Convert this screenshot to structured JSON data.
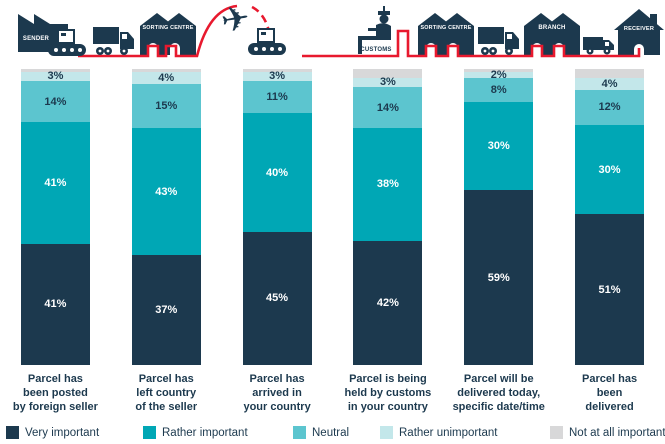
{
  "journey": {
    "stations": [
      {
        "label": "SENDER",
        "icon": "factory-icon"
      },
      {
        "label": "SORTING CENTRE",
        "icon": "warehouse-icon"
      },
      {
        "label": "CUSTOMS",
        "icon": "customs-officer-icon"
      },
      {
        "label": "SORTING CENTRE",
        "icon": "warehouse-icon"
      },
      {
        "label": "BRANCH",
        "icon": "warehouse-icon"
      },
      {
        "label": "RECEIVER",
        "icon": "house-icon"
      }
    ],
    "connectors": [
      "truck-icon",
      "airplane-icon",
      "conveyor-icon",
      "truck-icon",
      "van-icon"
    ],
    "path_color": "#e8192e",
    "icon_color": "#1c394e"
  },
  "chart_data": {
    "type": "bar",
    "stacked": true,
    "unit": "%",
    "ylim": [
      0,
      100
    ],
    "grid": false,
    "legend_position": "bottom",
    "categories": [
      "Parcel has\nbeen posted\nby foreign seller",
      "Parcel has\nleft country\nof the seller",
      "Parcel has\narrived in\nyour country",
      "Parcel is being\nheld by customs\nin your country",
      "Parcel will be\ndelivered today,\nspecific date/time",
      "Parcel has\nbeen\ndelivered"
    ],
    "series": [
      {
        "name": "Very important",
        "color": "#1c394e",
        "label_color": "#ffffff",
        "values": [
          41,
          37,
          45,
          42,
          59,
          51
        ],
        "labels": [
          "41%",
          "37%",
          "45%",
          "42%",
          "59%",
          "51%"
        ]
      },
      {
        "name": "Rather important",
        "color": "#00a7b5",
        "label_color": "#ffffff",
        "values": [
          41,
          43,
          40,
          38,
          30,
          30
        ],
        "labels": [
          "41%",
          "43%",
          "40%",
          "38%",
          "30%",
          "30%"
        ]
      },
      {
        "name": "Neutral",
        "color": "#5cc5cf",
        "label_color": "#1c394e",
        "values": [
          14,
          15,
          11,
          14,
          8,
          12
        ],
        "labels": [
          "14%",
          "15%",
          "11%",
          "14%",
          "8%",
          "12%"
        ]
      },
      {
        "name": "Rather unimportant",
        "color": "#c3e7ea",
        "label_color": "#1c394e",
        "values": [
          3,
          4,
          3,
          3,
          2,
          4
        ],
        "labels": [
          "3%",
          "4%",
          "3%",
          "3%",
          "2%",
          "4%"
        ]
      },
      {
        "name": "Not at all important",
        "color": "#d8d8d9",
        "label_color": "#1c394e",
        "values": [
          1,
          1,
          1,
          3,
          1,
          3
        ],
        "labels": [
          "",
          "",
          "",
          "",
          "",
          ""
        ]
      }
    ]
  }
}
